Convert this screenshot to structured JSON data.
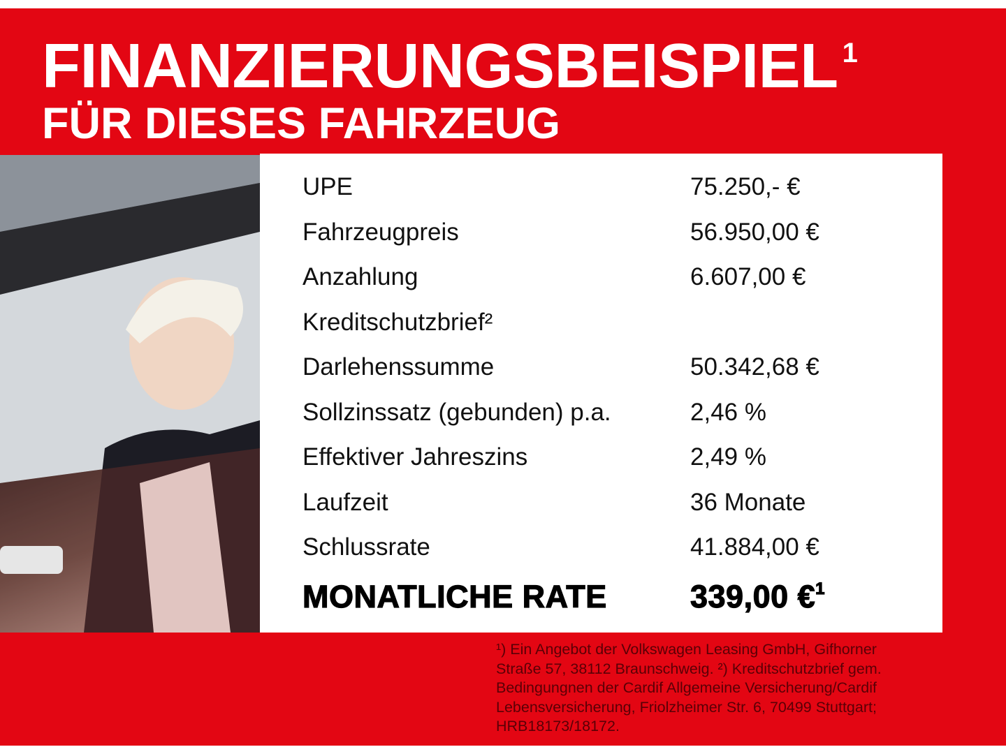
{
  "header": {
    "title": "FINANZIERUNGSBEISPIEL",
    "title_sup": "1",
    "subtitle": "FÜR DIESES FAHRZEUG"
  },
  "colors": {
    "brand_red": "#e30613",
    "panel": "#ffffff",
    "footnote_text": "#5a0006"
  },
  "photo": {
    "icon": "woman-in-car-photo"
  },
  "table": {
    "rows": [
      {
        "label": "UPE",
        "value": "75.250,- €"
      },
      {
        "label": "Fahrzeugpreis",
        "value": "56.950,00 €"
      },
      {
        "label": "Anzahlung",
        "value": "6.607,00 €"
      },
      {
        "label": "Kreditschutzbrief²",
        "value": ""
      },
      {
        "label": "Darlehenssumme",
        "value": "50.342,68 €"
      },
      {
        "label": "Sollzinssatz (gebunden) p.a.",
        "value": "2,46 %"
      },
      {
        "label": "Effektiver Jahreszins",
        "value": "2,49 %"
      },
      {
        "label": "Laufzeit",
        "value": "36 Monate"
      },
      {
        "label": "Schlussrate",
        "value": "41.884,00 €"
      }
    ],
    "total": {
      "label": "MONATLICHE RATE",
      "value": "339,00 €",
      "sup": "1"
    }
  },
  "footnote": {
    "lines": [
      "¹) Ein Angebot der Volkswagen Leasing GmbH, Gifhorner",
      "Straße 57, 38112 Braunschweig. ²) Kreditschutzbrief gem.",
      "Bedingungnen der Cardif Allgemeine Versicherung/Cardif",
      "Lebensversicherung, Friolzheimer Str. 6, 70499 Stuttgart;",
      "HRB18173/18172."
    ]
  }
}
